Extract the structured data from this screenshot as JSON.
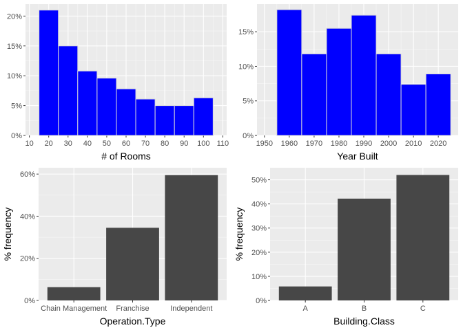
{
  "colors": {
    "panel": "#ebebeb",
    "grid_major": "#ffffff",
    "hist_fill": "#0000ff",
    "hist_outline": "#d9d9d9",
    "bar_fill": "#474747",
    "tick_text": "#4d4d4d"
  },
  "chart_data": [
    {
      "type": "bar",
      "subtype": "histogram",
      "xlabel": "# of Rooms",
      "ylabel": "",
      "xlim": [
        8,
        112
      ],
      "ylim": [
        0,
        22
      ],
      "x_ticks": [
        10,
        20,
        30,
        40,
        50,
        60,
        70,
        80,
        90,
        100,
        110
      ],
      "x_tick_labels": [
        "10",
        "20",
        "30",
        "40",
        "50",
        "60",
        "70",
        "80",
        "90",
        "100",
        "110"
      ],
      "y_ticks": [
        0,
        5,
        10,
        15,
        20
      ],
      "y_tick_labels": [
        "0%",
        "5%",
        "10%",
        "15%",
        "20%"
      ],
      "bins": [
        [
          15,
          25
        ],
        [
          25,
          35
        ],
        [
          35,
          45
        ],
        [
          45,
          55
        ],
        [
          55,
          65
        ],
        [
          65,
          75
        ],
        [
          75,
          85
        ],
        [
          85,
          95
        ],
        [
          95,
          105
        ]
      ],
      "values": [
        21.0,
        15.0,
        10.8,
        9.6,
        7.8,
        6.1,
        5.0,
        5.0,
        6.3
      ],
      "grid": true
    },
    {
      "type": "bar",
      "subtype": "histogram",
      "xlabel": "Year Built",
      "ylabel": "",
      "xlim": [
        1947,
        2028
      ],
      "ylim": [
        0,
        19
      ],
      "x_ticks": [
        1950,
        1960,
        1970,
        1980,
        1990,
        2000,
        2010,
        2020
      ],
      "x_tick_labels": [
        "1950",
        "1960",
        "1970",
        "1980",
        "1990",
        "2000",
        "2010",
        "2020"
      ],
      "y_ticks": [
        0,
        5,
        10,
        15
      ],
      "y_tick_labels": [
        "0%",
        "5%",
        "10%",
        "15%"
      ],
      "bins": [
        [
          1955,
          1965
        ],
        [
          1965,
          1975
        ],
        [
          1975,
          1985
        ],
        [
          1985,
          1995
        ],
        [
          1995,
          2005
        ],
        [
          2005,
          2015
        ],
        [
          2015,
          2025
        ]
      ],
      "values": [
        18.2,
        11.8,
        15.5,
        17.4,
        11.8,
        7.4,
        8.9
      ],
      "grid": true
    },
    {
      "type": "bar",
      "xlabel": "Operation.Type",
      "ylabel": "% frequency",
      "ylim": [
        0,
        63
      ],
      "categories": [
        "Chain Management",
        "Franchise",
        "Independent"
      ],
      "values": [
        6.3,
        34.5,
        59.5
      ],
      "y_ticks": [
        0,
        20,
        40,
        60
      ],
      "y_tick_labels": [
        "0%",
        "20%",
        "40%",
        "60%"
      ],
      "grid": true
    },
    {
      "type": "bar",
      "xlabel": "Building.Class",
      "ylabel": "% frequency",
      "ylim": [
        0,
        55
      ],
      "categories": [
        "A",
        "B",
        "C"
      ],
      "values": [
        5.8,
        42.2,
        52.0
      ],
      "y_ticks": [
        0,
        10,
        20,
        30,
        40,
        50
      ],
      "y_tick_labels": [
        "0%",
        "10%",
        "20%",
        "30%",
        "40%",
        "50%"
      ],
      "grid": true
    }
  ]
}
